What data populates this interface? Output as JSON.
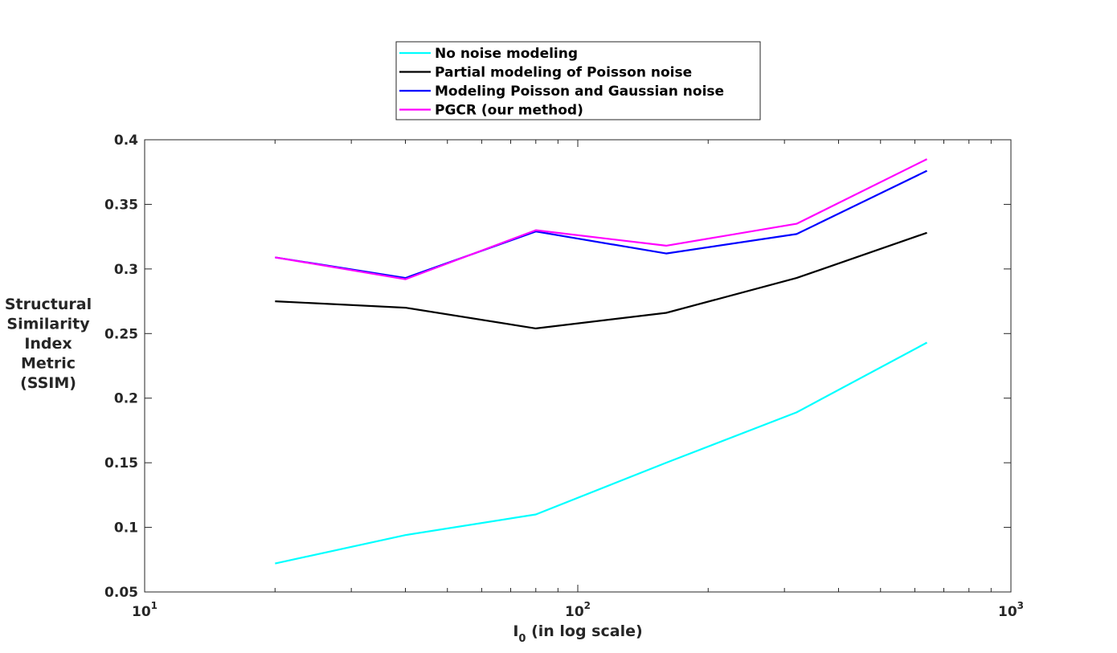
{
  "chart_data": {
    "type": "line",
    "xscale": "log",
    "xlim": [
      10,
      1000
    ],
    "ylim": [
      0.05,
      0.4
    ],
    "xticks_major": [
      10,
      100,
      1000
    ],
    "xtick_labels": [
      {
        "base": "10",
        "exp": "1"
      },
      {
        "base": "10",
        "exp": "2"
      },
      {
        "base": "10",
        "exp": "3"
      }
    ],
    "yticks": [
      0.05,
      0.1,
      0.15,
      0.2,
      0.25,
      0.3,
      0.35,
      0.4
    ],
    "ytick_labels": [
      "0.05",
      "0.1",
      "0.15",
      "0.2",
      "0.25",
      "0.3",
      "0.35",
      "0.4"
    ],
    "xlabel": {
      "main": "I",
      "sub": "0",
      "rest": " (in log scale)"
    },
    "ylabel_lines": [
      "Structural",
      "Similarity",
      "Index",
      "Metric",
      "(SSIM)"
    ],
    "grid": false,
    "legend_position": "top-center",
    "x": [
      20,
      40,
      80,
      160,
      320,
      640
    ],
    "series": [
      {
        "name": "No noise modeling",
        "color": "#00ffff",
        "values": [
          0.072,
          0.094,
          0.11,
          0.15,
          0.189,
          0.243
        ]
      },
      {
        "name": "Partial modeling of Poisson noise",
        "color": "#000000",
        "values": [
          0.275,
          0.27,
          0.254,
          0.266,
          0.293,
          0.328
        ]
      },
      {
        "name": "Modeling Poisson and Gaussian noise",
        "color": "#0000ff",
        "values": [
          0.309,
          0.293,
          0.329,
          0.312,
          0.327,
          0.376
        ]
      },
      {
        "name": "PGCR (our method)",
        "color": "#ff00ff",
        "values": [
          0.309,
          0.292,
          0.33,
          0.318,
          0.335,
          0.385
        ]
      }
    ]
  }
}
